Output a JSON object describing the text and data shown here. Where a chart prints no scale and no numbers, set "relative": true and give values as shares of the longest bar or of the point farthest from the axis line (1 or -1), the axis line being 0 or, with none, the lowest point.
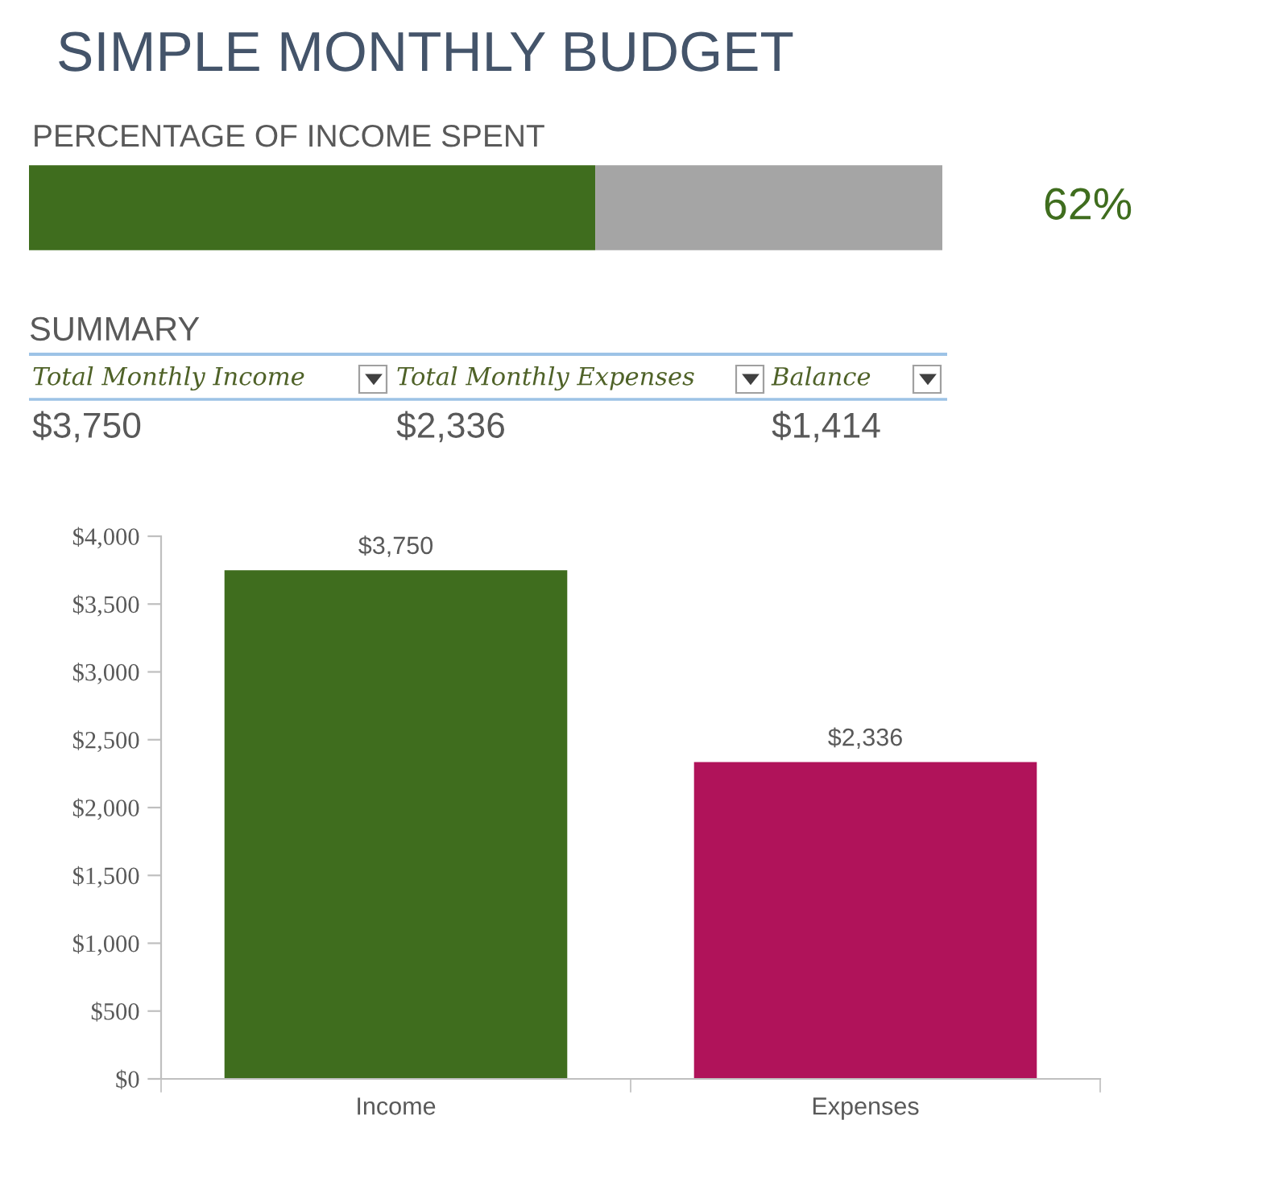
{
  "chart_data": [
    {
      "type": "bar",
      "title": "SIMPLE MONTHLY BUDGET",
      "subtitle": "PERCENTAGE OF INCOME SPENT",
      "orientation": "horizontal",
      "stacked": true,
      "categories": [
        null
      ],
      "relative": true,
      "tick_labels": false,
      "annotations": [
        "62%"
      ],
      "series": [
        {
          "color": "#3f6d1e",
          "values": [
            0.62
          ]
        },
        {
          "color": "#a5a5a5",
          "values": [
            0.38
          ]
        }
      ]
    },
    {
      "type": "other",
      "title": "SUMMARY",
      "categories": [
        "Total Monthly Income",
        "Total Monthly Expenses",
        "Balance"
      ],
      "value_labels": [
        "$3,750",
        "$2,336",
        "$1,414"
      ]
    },
    {
      "type": "bar",
      "categories": [
        "Income",
        "Expenses"
      ],
      "values": [
        3750,
        2336
      ],
      "colors": [
        "#3f6d1e",
        "#b0135a"
      ],
      "value_labels": [
        "$3,750",
        "$2,336"
      ],
      "ylim": [
        0,
        4000
      ],
      "yticks": [
        {
          "value": 0,
          "label": "$0"
        },
        {
          "value": 500,
          "label": "$500"
        },
        {
          "value": 1000,
          "label": "$1,000"
        },
        {
          "value": 1500,
          "label": "$1,500"
        },
        {
          "value": 2000,
          "label": "$2,000"
        },
        {
          "value": 2500,
          "label": "$2,500"
        },
        {
          "value": 3000,
          "label": "$3,000"
        },
        {
          "value": 3500,
          "label": "$3,500"
        },
        {
          "value": 4000,
          "label": "$4,000"
        }
      ]
    }
  ]
}
